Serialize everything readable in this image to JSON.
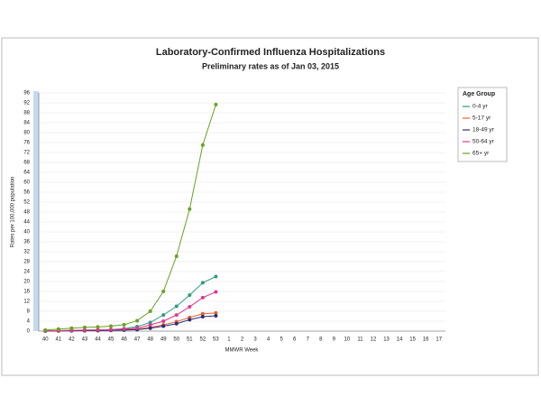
{
  "chart_data": {
    "type": "line",
    "title": "Laboratory-Confirmed Influenza Hospitalizations",
    "subtitle": "Preliminary rates as of Jan 03, 2015",
    "x_label": "MMWR Week",
    "y_label": "Rates per 100,000 population",
    "legend_title": "Age Group",
    "legend": "right",
    "grid": true,
    "categories": [
      "40",
      "41",
      "42",
      "43",
      "44",
      "45",
      "46",
      "47",
      "48",
      "49",
      "50",
      "51",
      "52",
      "53",
      "1",
      "2",
      "3",
      "4",
      "5",
      "6",
      "7",
      "8",
      "9",
      "10",
      "11",
      "12",
      "13",
      "14",
      "15",
      "16",
      "17"
    ],
    "ylim": [
      0,
      96
    ],
    "yticks": [
      0,
      4,
      8,
      12,
      16,
      20,
      24,
      28,
      32,
      36,
      40,
      44,
      48,
      52,
      56,
      60,
      64,
      68,
      72,
      76,
      80,
      84,
      88,
      92,
      96
    ],
    "series": [
      {
        "name": "0-4 yr",
        "color": "#2a9d7f",
        "values": [
          0.1,
          0.2,
          0.3,
          0.4,
          0.5,
          0.6,
          1.0,
          1.8,
          3.5,
          6.5,
          10.0,
          14.5,
          19.5,
          22.0,
          null,
          null,
          null,
          null,
          null,
          null,
          null,
          null,
          null,
          null,
          null,
          null,
          null,
          null,
          null,
          null,
          null
        ]
      },
      {
        "name": "5-17 yr",
        "color": "#e8602c",
        "values": [
          0.05,
          0.1,
          0.15,
          0.2,
          0.25,
          0.3,
          0.5,
          0.8,
          1.5,
          2.5,
          3.8,
          5.5,
          7.0,
          7.3,
          null,
          null,
          null,
          null,
          null,
          null,
          null,
          null,
          null,
          null,
          null,
          null,
          null,
          null,
          null,
          null,
          null
        ]
      },
      {
        "name": "18-49 yr",
        "color": "#2b2b7a",
        "values": [
          0.05,
          0.1,
          0.15,
          0.2,
          0.25,
          0.3,
          0.4,
          0.6,
          1.2,
          2.0,
          3.0,
          4.6,
          5.8,
          6.2,
          null,
          null,
          null,
          null,
          null,
          null,
          null,
          null,
          null,
          null,
          null,
          null,
          null,
          null,
          null,
          null,
          null
        ]
      },
      {
        "name": "50-64 yr",
        "color": "#e0388c",
        "values": [
          0.1,
          0.2,
          0.3,
          0.4,
          0.5,
          0.6,
          0.8,
          1.2,
          2.5,
          4.0,
          6.5,
          9.8,
          13.5,
          15.8,
          null,
          null,
          null,
          null,
          null,
          null,
          null,
          null,
          null,
          null,
          null,
          null,
          null,
          null,
          null,
          null,
          null
        ]
      },
      {
        "name": "65+ yr",
        "color": "#6aa121",
        "values": [
          0.4,
          0.8,
          1.2,
          1.5,
          1.7,
          2.0,
          2.6,
          4.2,
          8.0,
          16.0,
          30.2,
          49.2,
          75.0,
          91.3,
          null,
          null,
          null,
          null,
          null,
          null,
          null,
          null,
          null,
          null,
          null,
          null,
          null,
          null,
          null,
          null,
          null
        ]
      }
    ]
  }
}
